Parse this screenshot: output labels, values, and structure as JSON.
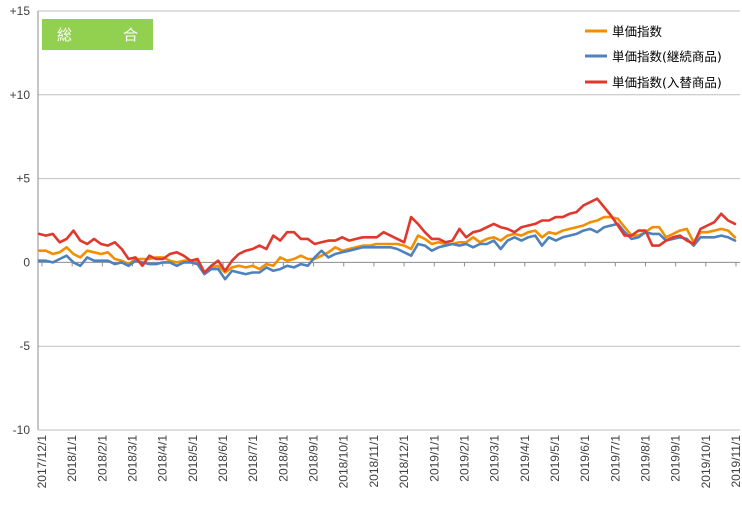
{
  "chart_data": {
    "type": "line",
    "title": "総　合",
    "ylim": [
      -10,
      15
    ],
    "y_ticks": [
      15,
      10,
      5,
      0,
      -5,
      -10
    ],
    "y_tick_labels": [
      "+15",
      "+10",
      "+5",
      "0",
      "-5",
      "-10"
    ],
    "x_tick_labels": [
      "2017/12/1",
      "2018/1/1",
      "2018/2/1",
      "2018/3/1",
      "2018/4/1",
      "2018/5/1",
      "2018/6/1",
      "2018/7/1",
      "2018/8/1",
      "2018/9/1",
      "2018/10/1",
      "2018/11/1",
      "2018/12/1",
      "2019/1/1",
      "2019/2/1",
      "2019/3/1",
      "2019/4/1",
      "2019/5/1",
      "2019/6/1",
      "2019/7/1",
      "2019/8/1",
      "2019/9/1",
      "2019/10/1",
      "2019/11/1"
    ],
    "grid": "horizontal",
    "legend_position": "top-right",
    "series": [
      {
        "name": "単価指数",
        "color": "#f28e00",
        "values": [
          0.7,
          0.7,
          0.5,
          0.6,
          0.9,
          0.5,
          0.3,
          0.7,
          0.6,
          0.5,
          0.6,
          0.2,
          0.1,
          -0.1,
          0.2,
          0.2,
          0.2,
          0.3,
          0.3,
          0.1,
          0.0,
          0.1,
          0.1,
          0.1,
          -0.6,
          -0.3,
          -0.2,
          -0.6,
          -0.3,
          -0.2,
          -0.3,
          -0.2,
          -0.4,
          -0.1,
          -0.2,
          0.3,
          0.1,
          0.2,
          0.4,
          0.2,
          0.2,
          0.4,
          0.6,
          0.9,
          0.7,
          0.8,
          0.9,
          1.0,
          1.0,
          1.1,
          1.1,
          1.1,
          1.1,
          1.0,
          0.8,
          1.6,
          1.4,
          1.1,
          1.2,
          1.1,
          1.1,
          1.2,
          1.2,
          1.5,
          1.2,
          1.4,
          1.5,
          1.3,
          1.6,
          1.7,
          1.6,
          1.8,
          1.9,
          1.5,
          1.8,
          1.7,
          1.9,
          2.0,
          2.1,
          2.2,
          2.4,
          2.5,
          2.7,
          2.7,
          2.6,
          2.1,
          1.6,
          1.6,
          1.8,
          2.1,
          2.1,
          1.5,
          1.7,
          1.9,
          2.0,
          1.2,
          1.8,
          1.8,
          1.9,
          2.0,
          1.9,
          1.5
        ]
      },
      {
        "name": "単価指数(継続商品)",
        "color": "#4f81bd",
        "values": [
          0.1,
          0.1,
          0.0,
          0.2,
          0.4,
          0.0,
          -0.2,
          0.3,
          0.1,
          0.1,
          0.1,
          -0.1,
          0.0,
          -0.2,
          0.1,
          0.0,
          -0.1,
          -0.1,
          0.0,
          0.0,
          -0.2,
          0.0,
          0.0,
          -0.1,
          -0.7,
          -0.4,
          -0.4,
          -1.0,
          -0.5,
          -0.6,
          -0.7,
          -0.6,
          -0.6,
          -0.3,
          -0.5,
          -0.4,
          -0.2,
          -0.3,
          -0.1,
          -0.2,
          0.3,
          0.7,
          0.3,
          0.5,
          0.6,
          0.7,
          0.8,
          0.9,
          0.9,
          0.9,
          0.9,
          0.9,
          0.8,
          0.6,
          0.4,
          1.1,
          1.0,
          0.7,
          0.9,
          1.0,
          1.1,
          1.0,
          1.1,
          0.9,
          1.1,
          1.1,
          1.3,
          0.8,
          1.3,
          1.5,
          1.3,
          1.5,
          1.6,
          1.0,
          1.5,
          1.3,
          1.5,
          1.6,
          1.7,
          1.9,
          2.0,
          1.8,
          2.1,
          2.2,
          2.3,
          1.8,
          1.4,
          1.5,
          1.8,
          1.7,
          1.7,
          1.3,
          1.4,
          1.5,
          1.4,
          1.0,
          1.5,
          1.5,
          1.5,
          1.6,
          1.5,
          1.3
        ]
      },
      {
        "name": "単価指数(入替商品)",
        "color": "#e0382d",
        "values": [
          1.7,
          1.6,
          1.7,
          1.2,
          1.4,
          1.9,
          1.3,
          1.1,
          1.4,
          1.1,
          1.0,
          1.2,
          0.8,
          0.2,
          0.3,
          -0.2,
          0.4,
          0.2,
          0.2,
          0.5,
          0.6,
          0.4,
          0.1,
          0.2,
          -0.6,
          -0.2,
          0.1,
          -0.5,
          0.1,
          0.5,
          0.7,
          0.8,
          1.0,
          0.8,
          1.6,
          1.3,
          1.8,
          1.8,
          1.4,
          1.4,
          1.1,
          1.2,
          1.3,
          1.3,
          1.5,
          1.3,
          1.4,
          1.5,
          1.5,
          1.5,
          1.8,
          1.6,
          1.4,
          1.2,
          2.7,
          2.3,
          1.8,
          1.4,
          1.4,
          1.2,
          1.3,
          2.0,
          1.5,
          1.8,
          1.9,
          2.1,
          2.3,
          2.1,
          2.0,
          1.8,
          2.1,
          2.2,
          2.3,
          2.5,
          2.5,
          2.7,
          2.7,
          2.9,
          3.0,
          3.4,
          3.6,
          3.8,
          3.3,
          2.8,
          2.2,
          1.6,
          1.6,
          1.9,
          1.9,
          1.0,
          1.0,
          1.3,
          1.5,
          1.6,
          1.3,
          1.1,
          2.0,
          2.2,
          2.4,
          2.9,
          2.5,
          2.3
        ]
      }
    ]
  }
}
